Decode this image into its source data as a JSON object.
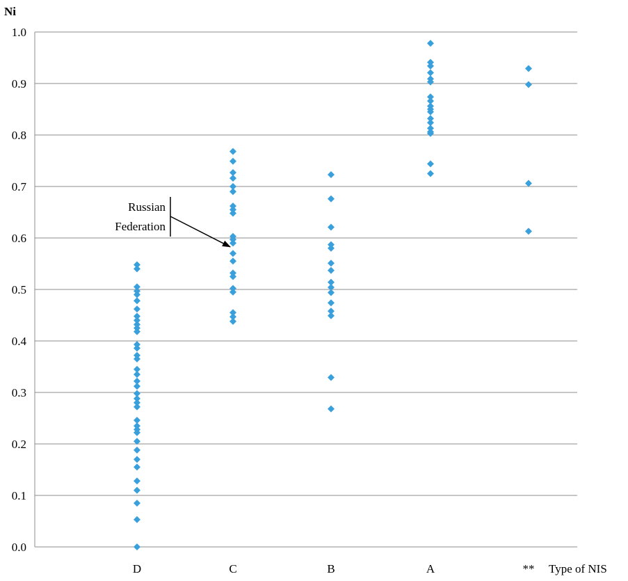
{
  "chart_data": {
    "type": "scatter",
    "title": "",
    "ylabel": "Ni",
    "xlabel": "Type of NIS",
    "ylim": [
      0,
      1
    ],
    "yticks": [
      "0.0",
      "0.1",
      "0.2",
      "0.3",
      "0.4",
      "0.5",
      "0.6",
      "0.7",
      "0.8",
      "0.9",
      "1.0"
    ],
    "categories": [
      "D",
      "C",
      "B",
      "A",
      "**"
    ],
    "grid": true,
    "marker_color": "#3aa0dc",
    "series": [
      {
        "category": "D",
        "values": [
          0.548,
          0.54,
          0.505,
          0.497,
          0.49,
          0.478,
          0.462,
          0.448,
          0.44,
          0.432,
          0.425,
          0.418,
          0.393,
          0.386,
          0.372,
          0.365,
          0.345,
          0.335,
          0.322,
          0.312,
          0.298,
          0.288,
          0.28,
          0.272,
          0.246,
          0.235,
          0.228,
          0.222,
          0.205,
          0.188,
          0.17,
          0.155,
          0.128,
          0.11,
          0.085,
          0.053,
          0.0
        ]
      },
      {
        "category": "C",
        "values": [
          0.768,
          0.749,
          0.727,
          0.716,
          0.7,
          0.69,
          0.662,
          0.655,
          0.648,
          0.603,
          0.597,
          0.59,
          0.57,
          0.555,
          0.532,
          0.525,
          0.502,
          0.495,
          0.455,
          0.447,
          0.438
        ]
      },
      {
        "category": "B",
        "values": [
          0.723,
          0.676,
          0.621,
          0.587,
          0.58,
          0.551,
          0.537,
          0.514,
          0.504,
          0.494,
          0.474,
          0.458,
          0.449,
          0.329,
          0.268
        ]
      },
      {
        "category": "A",
        "values": [
          0.978,
          0.941,
          0.934,
          0.921,
          0.909,
          0.903,
          0.874,
          0.866,
          0.856,
          0.85,
          0.845,
          0.832,
          0.824,
          0.813,
          0.806,
          0.803,
          0.744,
          0.725
        ]
      },
      {
        "category": "**",
        "values": [
          0.929,
          0.898,
          0.706,
          0.613
        ]
      }
    ],
    "annotation": {
      "lines": [
        "Russian",
        "Federation"
      ],
      "target_category": "C",
      "target_value": 0.58
    }
  }
}
